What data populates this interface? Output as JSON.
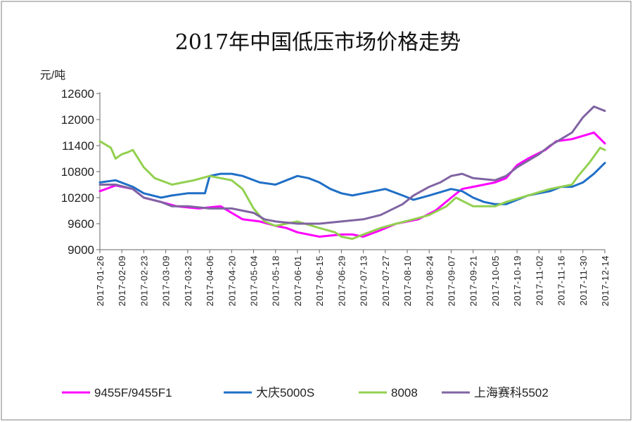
{
  "chart_data": {
    "type": "line",
    "title": "2017年中国低压市场价格走势",
    "ylabel": "元/吨",
    "xlabel": "",
    "ylim": [
      9000,
      12600
    ],
    "yticks": [
      9000,
      9600,
      10200,
      10800,
      11400,
      12000,
      12600
    ],
    "categories": [
      "2017-01-26",
      "2017-02-09",
      "2017-02-23",
      "2017-03-09",
      "2017-03-23",
      "2017-04-06",
      "2017-04-20",
      "2017-05-04",
      "2017-05-18",
      "2017-06-01",
      "2017-06-15",
      "2017-06-29",
      "2017-07-13",
      "2017-07-27",
      "2017-08-10",
      "2017-08-24",
      "2017-09-07",
      "2017-09-21",
      "2017-10-05",
      "2017-10-19",
      "2017-11-02",
      "2017-11-16",
      "2017-11-30",
      "2017-12-14"
    ],
    "legend_position": "bottom",
    "series": [
      {
        "name": "9455F/9455F1",
        "color": "#ff00ff",
        "x": [
          "2017-01-26",
          "2017-02-05",
          "2017-02-16",
          "2017-02-23",
          "2017-03-06",
          "2017-03-16",
          "2017-03-30",
          "2017-04-13",
          "2017-04-20",
          "2017-04-27",
          "2017-05-08",
          "2017-05-18",
          "2017-05-25",
          "2017-06-01",
          "2017-06-15",
          "2017-06-29",
          "2017-07-06",
          "2017-07-13",
          "2017-07-24",
          "2017-08-03",
          "2017-08-17",
          "2017-08-28",
          "2017-09-07",
          "2017-09-14",
          "2017-09-21",
          "2017-09-28",
          "2017-10-05",
          "2017-10-12",
          "2017-10-19",
          "2017-10-26",
          "2017-11-06",
          "2017-11-13",
          "2017-11-23",
          "2017-12-07",
          "2017-12-14"
        ],
        "values": [
          10350,
          10480,
          10400,
          10200,
          10100,
          10000,
          9950,
          10000,
          9850,
          9700,
          9650,
          9550,
          9500,
          9400,
          9300,
          9350,
          9350,
          9300,
          9450,
          9600,
          9700,
          9900,
          10200,
          10400,
          10450,
          10500,
          10550,
          10650,
          10950,
          11100,
          11300,
          11500,
          11550,
          11700,
          11450
        ]
      },
      {
        "name": "大庆5000S",
        "color": "#1f6fc6",
        "x": [
          "2017-01-26",
          "2017-02-05",
          "2017-02-16",
          "2017-02-23",
          "2017-03-06",
          "2017-03-13",
          "2017-03-23",
          "2017-04-03",
          "2017-04-06",
          "2017-04-13",
          "2017-04-20",
          "2017-04-27",
          "2017-05-08",
          "2017-05-18",
          "2017-05-25",
          "2017-06-01",
          "2017-06-08",
          "2017-06-15",
          "2017-06-22",
          "2017-06-29",
          "2017-07-06",
          "2017-07-13",
          "2017-07-20",
          "2017-07-27",
          "2017-08-07",
          "2017-08-14",
          "2017-08-24",
          "2017-09-07",
          "2017-09-14",
          "2017-09-21",
          "2017-09-28",
          "2017-10-05",
          "2017-10-12",
          "2017-10-19",
          "2017-10-26",
          "2017-11-02",
          "2017-11-09",
          "2017-11-16",
          "2017-11-23",
          "2017-11-30",
          "2017-12-07",
          "2017-12-14"
        ],
        "values": [
          10550,
          10600,
          10450,
          10300,
          10200,
          10250,
          10300,
          10300,
          10700,
          10750,
          10750,
          10700,
          10550,
          10500,
          10600,
          10700,
          10650,
          10550,
          10400,
          10300,
          10250,
          10300,
          10350,
          10400,
          10250,
          10150,
          10250,
          10400,
          10350,
          10200,
          10100,
          10050,
          10050,
          10150,
          10250,
          10300,
          10350,
          10450,
          10450,
          10550,
          10750,
          11000
        ]
      },
      {
        "name": "8008",
        "color": "#92d050",
        "x": [
          "2017-01-26",
          "2017-02-02",
          "2017-02-05",
          "2017-02-09",
          "2017-02-13",
          "2017-02-16",
          "2017-02-23",
          "2017-03-02",
          "2017-03-13",
          "2017-03-20",
          "2017-03-27",
          "2017-04-06",
          "2017-04-13",
          "2017-04-20",
          "2017-04-27",
          "2017-05-04",
          "2017-05-11",
          "2017-05-18",
          "2017-05-25",
          "2017-06-01",
          "2017-06-15",
          "2017-06-25",
          "2017-06-29",
          "2017-07-06",
          "2017-07-13",
          "2017-07-24",
          "2017-08-03",
          "2017-08-14",
          "2017-08-24",
          "2017-09-04",
          "2017-09-10",
          "2017-09-21",
          "2017-10-05",
          "2017-10-12",
          "2017-10-26",
          "2017-11-09",
          "2017-11-23",
          "2017-11-27",
          "2017-12-04",
          "2017-12-11",
          "2017-12-14"
        ],
        "values": [
          11500,
          11350,
          11100,
          11200,
          11250,
          11300,
          10900,
          10650,
          10500,
          10550,
          10600,
          10700,
          10650,
          10600,
          10400,
          9950,
          9650,
          9550,
          9600,
          9650,
          9500,
          9400,
          9300,
          9250,
          9350,
          9500,
          9600,
          9700,
          9800,
          10000,
          10200,
          10000,
          10000,
          10100,
          10250,
          10400,
          10500,
          10700,
          11000,
          11350,
          11300
        ]
      },
      {
        "name": "上海赛科5502",
        "color": "#8064a2",
        "x": [
          "2017-01-26",
          "2017-02-05",
          "2017-02-16",
          "2017-02-23",
          "2017-03-06",
          "2017-03-13",
          "2017-03-23",
          "2017-04-06",
          "2017-04-13",
          "2017-04-20",
          "2017-04-27",
          "2017-05-04",
          "2017-05-11",
          "2017-05-18",
          "2017-06-01",
          "2017-06-15",
          "2017-06-29",
          "2017-07-13",
          "2017-07-24",
          "2017-08-07",
          "2017-08-14",
          "2017-08-24",
          "2017-08-31",
          "2017-09-07",
          "2017-09-14",
          "2017-09-21",
          "2017-10-05",
          "2017-10-12",
          "2017-10-19",
          "2017-10-26",
          "2017-11-02",
          "2017-11-09",
          "2017-11-16",
          "2017-11-23",
          "2017-11-30",
          "2017-12-07",
          "2017-12-14"
        ],
        "values": [
          10500,
          10500,
          10400,
          10200,
          10100,
          10000,
          10000,
          9950,
          9950,
          9950,
          9900,
          9850,
          9700,
          9650,
          9600,
          9600,
          9650,
          9700,
          9800,
          10050,
          10250,
          10450,
          10550,
          10700,
          10750,
          10650,
          10600,
          10700,
          10900,
          11050,
          11200,
          11400,
          11550,
          11700,
          12050,
          12300,
          12200
        ]
      }
    ]
  }
}
